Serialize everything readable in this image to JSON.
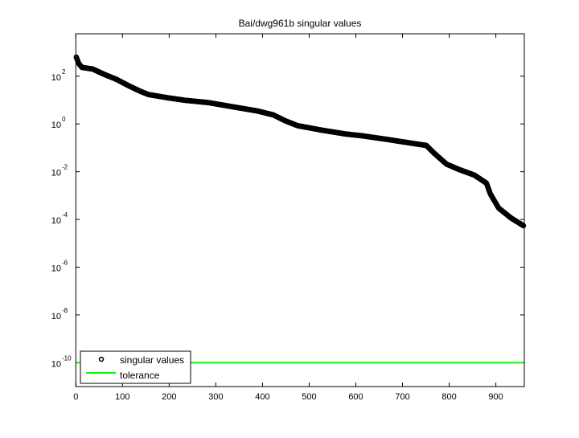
{
  "chart_data": {
    "type": "scatter",
    "title": "Bai/dwg961b singular values",
    "xlabel": "",
    "ylabel": "",
    "xlim": [
      0,
      961
    ],
    "ylim": [
      1e-11,
      6000
    ],
    "yscale": "log",
    "grid": false,
    "legend_position": "bottom-left",
    "x_ticks": [
      "0",
      "100",
      "200",
      "300",
      "400",
      "500",
      "600",
      "700",
      "800",
      "900"
    ],
    "y_ticks": [
      {
        "base": "10",
        "exp": "2",
        "value": 100
      },
      {
        "base": "10",
        "exp": "0",
        "value": 1
      },
      {
        "base": "10",
        "exp": "-2",
        "value": 0.01
      },
      {
        "base": "10",
        "exp": "-4",
        "value": 0.0001
      },
      {
        "base": "10",
        "exp": "-6",
        "value": 1e-06
      },
      {
        "base": "10",
        "exp": "-8",
        "value": 1e-08
      },
      {
        "base": "10",
        "exp": "-10",
        "value": 1e-10
      }
    ],
    "series": [
      {
        "name": "singular values",
        "marker": "circle",
        "color": "#000000",
        "points": [
          [
            1,
            631
          ],
          [
            6,
            347
          ],
          [
            13,
            234
          ],
          [
            36,
            200
          ],
          [
            62,
            117
          ],
          [
            87,
            74
          ],
          [
            113,
            40
          ],
          [
            139,
            23
          ],
          [
            156,
            17
          ],
          [
            199,
            12.3
          ],
          [
            234,
            9.8
          ],
          [
            285,
            7.8
          ],
          [
            337,
            5.2
          ],
          [
            389,
            3.5
          ],
          [
            423,
            2.4
          ],
          [
            449,
            1.35
          ],
          [
            475,
            0.85
          ],
          [
            527,
            0.55
          ],
          [
            578,
            0.38
          ],
          [
            613,
            0.32
          ],
          [
            664,
            0.23
          ],
          [
            716,
            0.16
          ],
          [
            751,
            0.126
          ],
          [
            768,
            0.059
          ],
          [
            794,
            0.021
          ],
          [
            820,
            0.0126
          ],
          [
            854,
            0.0072
          ],
          [
            880,
            0.0033
          ],
          [
            888,
            0.0012
          ],
          [
            906,
            0.0003
          ],
          [
            932,
            0.000117
          ],
          [
            959,
            5.5e-05
          ]
        ]
      },
      {
        "name": "tolerance",
        "line": true,
        "color": "#00ff00",
        "value": 1e-10
      }
    ]
  }
}
